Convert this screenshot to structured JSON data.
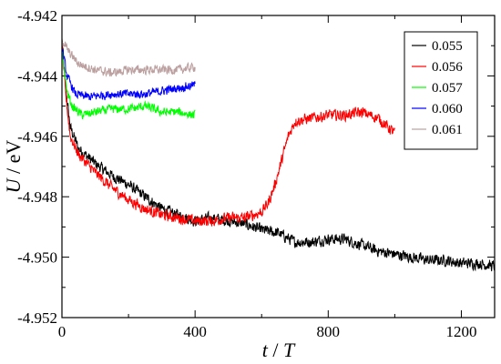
{
  "chart_data": {
    "type": "line",
    "xlabel": {
      "var": "t",
      "sep": " / ",
      "den": "T"
    },
    "ylabel": {
      "var": "U",
      "sep": " / ",
      "unit": "eV"
    },
    "xlim": [
      0,
      1300
    ],
    "ylim": [
      -4.952,
      -4.942
    ],
    "xticks": [
      0,
      400,
      800,
      1200
    ],
    "xtick_labels": [
      "0",
      "400",
      "800",
      "1200"
    ],
    "yticks": [
      -4.952,
      -4.95,
      -4.948,
      -4.946,
      -4.944,
      -4.942
    ],
    "ytick_labels": [
      "-4.952",
      "-4.950",
      "-4.948",
      "-4.946",
      "-4.944",
      "-4.942"
    ],
    "legend_position": "top-right",
    "series": [
      {
        "name": "0.055",
        "color": "#000000",
        "noise": 0.00025,
        "points": [
          [
            0,
            -4.9428
          ],
          [
            10,
            -4.9443
          ],
          [
            25,
            -4.9457
          ],
          [
            50,
            -4.9464
          ],
          [
            100,
            -4.9469
          ],
          [
            150,
            -4.9473
          ],
          [
            200,
            -4.9476
          ],
          [
            250,
            -4.948
          ],
          [
            300,
            -4.9484
          ],
          [
            350,
            -4.9486
          ],
          [
            400,
            -4.9488
          ],
          [
            450,
            -4.9487
          ],
          [
            500,
            -4.9488
          ],
          [
            550,
            -4.9489
          ],
          [
            600,
            -4.9491
          ],
          [
            650,
            -4.9492
          ],
          [
            700,
            -4.9495
          ],
          [
            750,
            -4.9495
          ],
          [
            800,
            -4.9494
          ],
          [
            850,
            -4.9494
          ],
          [
            900,
            -4.9496
          ],
          [
            950,
            -4.9498
          ],
          [
            1000,
            -4.9499
          ],
          [
            1050,
            -4.95
          ],
          [
            1100,
            -4.9501
          ],
          [
            1150,
            -4.9501
          ],
          [
            1200,
            -4.9502
          ],
          [
            1250,
            -4.9502
          ],
          [
            1300,
            -4.9503
          ]
        ]
      },
      {
        "name": "0.056",
        "color": "#ff0000",
        "noise": 0.00025,
        "points": [
          [
            0,
            -4.9429
          ],
          [
            10,
            -4.9445
          ],
          [
            25,
            -4.946
          ],
          [
            50,
            -4.9466
          ],
          [
            100,
            -4.9472
          ],
          [
            150,
            -4.9477
          ],
          [
            200,
            -4.9481
          ],
          [
            250,
            -4.9484
          ],
          [
            300,
            -4.9486
          ],
          [
            350,
            -4.9487
          ],
          [
            400,
            -4.9488
          ],
          [
            450,
            -4.9488
          ],
          [
            500,
            -4.9487
          ],
          [
            550,
            -4.9487
          ],
          [
            600,
            -4.9485
          ],
          [
            620,
            -4.9482
          ],
          [
            640,
            -4.9476
          ],
          [
            660,
            -4.9468
          ],
          [
            680,
            -4.946
          ],
          [
            700,
            -4.9455
          ],
          [
            750,
            -4.9454
          ],
          [
            800,
            -4.9453
          ],
          [
            850,
            -4.9453
          ],
          [
            900,
            -4.9452
          ],
          [
            950,
            -4.9454
          ],
          [
            1000,
            -4.9459
          ]
        ]
      },
      {
        "name": "0.057",
        "color": "#00ff00",
        "noise": 0.0002,
        "points": [
          [
            0,
            -4.9432
          ],
          [
            15,
            -4.9445
          ],
          [
            30,
            -4.945
          ],
          [
            60,
            -4.9453
          ],
          [
            100,
            -4.9452
          ],
          [
            150,
            -4.9451
          ],
          [
            200,
            -4.9451
          ],
          [
            250,
            -4.945
          ],
          [
            300,
            -4.9452
          ],
          [
            350,
            -4.9452
          ],
          [
            400,
            -4.9453
          ]
        ]
      },
      {
        "name": "0.060",
        "color": "#0000ff",
        "noise": 0.0002,
        "points": [
          [
            0,
            -4.943
          ],
          [
            15,
            -4.944
          ],
          [
            40,
            -4.9446
          ],
          [
            80,
            -4.9447
          ],
          [
            150,
            -4.9446
          ],
          [
            200,
            -4.9446
          ],
          [
            250,
            -4.9446
          ],
          [
            300,
            -4.9445
          ],
          [
            350,
            -4.9444
          ],
          [
            400,
            -4.9443
          ]
        ]
      },
      {
        "name": "0.061",
        "color": "#bca0a0",
        "noise": 0.0002,
        "points": [
          [
            0,
            -4.9428
          ],
          [
            20,
            -4.9432
          ],
          [
            50,
            -4.9436
          ],
          [
            100,
            -4.9438
          ],
          [
            150,
            -4.9439
          ],
          [
            200,
            -4.9438
          ],
          [
            250,
            -4.9438
          ],
          [
            300,
            -4.9438
          ],
          [
            350,
            -4.9438
          ],
          [
            400,
            -4.9437
          ]
        ]
      }
    ]
  }
}
